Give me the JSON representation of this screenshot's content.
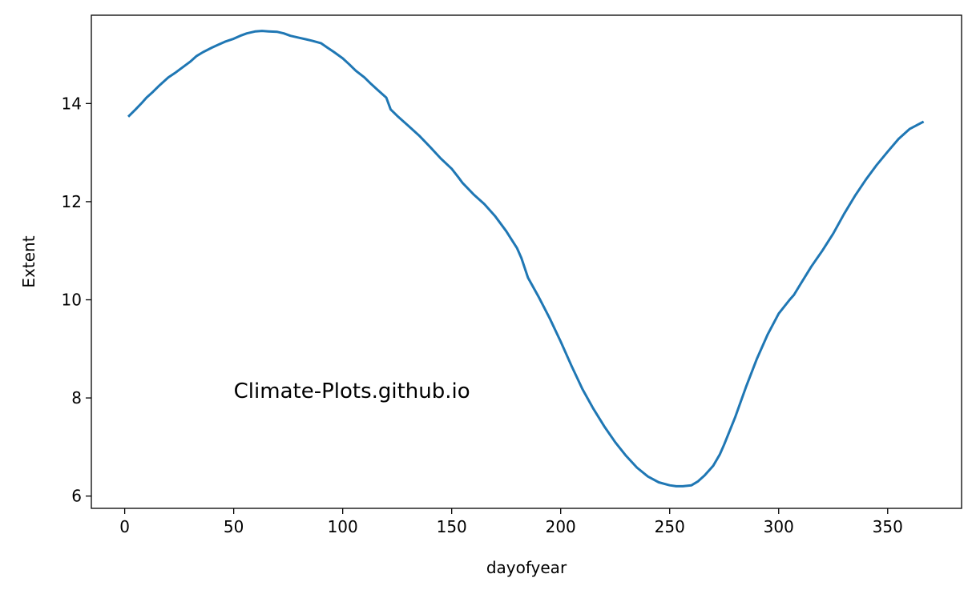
{
  "chart_data": {
    "type": "line",
    "title": "",
    "xlabel": "dayofyear",
    "ylabel": "Extent",
    "xlim": [
      -15.3,
      383.9
    ],
    "ylim": [
      5.75,
      15.8
    ],
    "grid": false,
    "legend": "none",
    "x_ticks": [
      0,
      50,
      100,
      150,
      200,
      250,
      300,
      350
    ],
    "x_tick_labels": [
      "0",
      "50",
      "100",
      "150",
      "200",
      "250",
      "300",
      "350"
    ],
    "y_ticks": [
      6,
      8,
      10,
      12,
      14
    ],
    "y_tick_labels": [
      "6",
      "8",
      "10",
      "12",
      "14"
    ],
    "annotation": {
      "text": "Climate-Plots.github.io",
      "x": 50,
      "y": 8.0
    },
    "series": [
      {
        "color": "#1f77b4",
        "x": [
          2,
          5,
          8,
          10,
          13,
          16,
          20,
          23,
          26,
          30,
          33,
          36,
          40,
          43,
          46,
          50,
          53,
          56,
          60,
          63,
          66,
          70,
          73,
          76,
          80,
          83,
          86,
          90,
          93,
          96,
          100,
          103,
          106,
          110,
          113,
          116,
          120,
          122,
          125,
          130,
          135,
          140,
          145,
          150,
          153,
          155,
          160,
          165,
          170,
          175,
          180,
          182,
          185,
          190,
          195,
          200,
          205,
          210,
          215,
          220,
          225,
          230,
          235,
          240,
          245,
          250,
          253,
          256,
          260,
          263,
          266,
          270,
          273,
          275,
          280,
          285,
          290,
          295,
          300,
          305,
          307,
          310,
          315,
          320,
          325,
          330,
          335,
          340,
          345,
          350,
          355,
          360,
          363,
          366
        ],
        "values": [
          13.75,
          13.88,
          14.02,
          14.12,
          14.24,
          14.37,
          14.53,
          14.62,
          14.72,
          14.85,
          14.97,
          15.05,
          15.14,
          15.2,
          15.26,
          15.32,
          15.38,
          15.43,
          15.47,
          15.48,
          15.47,
          15.46,
          15.43,
          15.38,
          15.34,
          15.31,
          15.28,
          15.23,
          15.14,
          15.05,
          14.92,
          14.8,
          14.67,
          14.53,
          14.4,
          14.28,
          14.12,
          13.88,
          13.75,
          13.55,
          13.35,
          13.12,
          12.88,
          12.67,
          12.5,
          12.38,
          12.15,
          11.95,
          11.7,
          11.4,
          11.05,
          10.85,
          10.45,
          10.05,
          9.62,
          9.15,
          8.65,
          8.18,
          7.78,
          7.42,
          7.1,
          6.82,
          6.58,
          6.4,
          6.28,
          6.22,
          6.2,
          6.2,
          6.22,
          6.3,
          6.42,
          6.62,
          6.85,
          7.05,
          7.6,
          8.22,
          8.8,
          9.3,
          9.72,
          10.0,
          10.1,
          10.32,
          10.68,
          11.0,
          11.35,
          11.75,
          12.12,
          12.45,
          12.75,
          13.02,
          13.28,
          13.48,
          13.55,
          13.62
        ]
      }
    ]
  }
}
